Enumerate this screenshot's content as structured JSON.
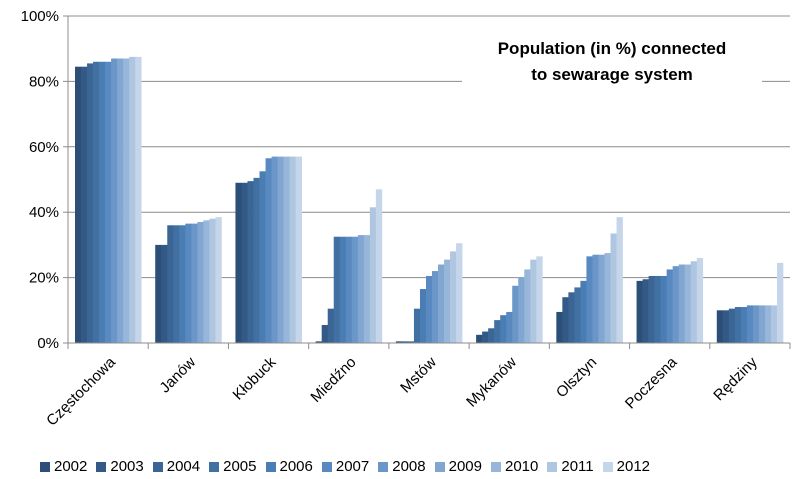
{
  "chart_data": {
    "type": "bar",
    "title_lines": [
      "Population (in %) connected",
      "to sewarage system"
    ],
    "y_ticks": [
      "0%",
      "20%",
      "40%",
      "60%",
      "80%",
      "100%"
    ],
    "ylim": [
      0,
      100
    ],
    "grid": true,
    "legend_position": "bottom",
    "categories": [
      "Częstochowa",
      "Janów",
      "Kłobuck",
      "Miedźno",
      "Mstów",
      "Mykanów",
      "Olsztyn",
      "Poczesna",
      "Rędziny"
    ],
    "series": [
      {
        "name": "2002",
        "color": "#2c4f78",
        "values": [
          84.5,
          30,
          49,
          0.5,
          0.5,
          2.5,
          9.5,
          19,
          10
        ]
      },
      {
        "name": "2003",
        "color": "#335a86",
        "values": [
          84.5,
          30,
          49,
          5.5,
          0.5,
          3.5,
          14,
          19.5,
          10
        ]
      },
      {
        "name": "2004",
        "color": "#3a6594",
        "values": [
          85.5,
          36,
          49.5,
          10.5,
          0.5,
          4.5,
          15.5,
          20.5,
          10.5
        ]
      },
      {
        "name": "2005",
        "color": "#4170a2",
        "values": [
          86,
          36,
          50.5,
          32.5,
          10.5,
          7,
          17,
          20.5,
          11
        ]
      },
      {
        "name": "2006",
        "color": "#4a7db3",
        "values": [
          86,
          36,
          52.5,
          32.5,
          16.5,
          8.5,
          19,
          20.5,
          11
        ]
      },
      {
        "name": "2007",
        "color": "#5889c0",
        "values": [
          86,
          36.5,
          56.5,
          32.5,
          20.5,
          9.5,
          26.5,
          22.5,
          11.5
        ]
      },
      {
        "name": "2008",
        "color": "#6b96c8",
        "values": [
          87,
          36.5,
          57,
          32.5,
          22,
          17.5,
          27,
          23.5,
          11.5
        ]
      },
      {
        "name": "2009",
        "color": "#80a6d1",
        "values": [
          87,
          37,
          57,
          33,
          24,
          20,
          27,
          24,
          11.5
        ]
      },
      {
        "name": "2010",
        "color": "#97b6d9",
        "values": [
          87,
          37.5,
          57,
          33,
          25.5,
          22.5,
          27.5,
          24,
          11.5
        ]
      },
      {
        "name": "2011",
        "color": "#afc6e1",
        "values": [
          87.5,
          38,
          57,
          41.5,
          28,
          25.5,
          33.5,
          25,
          11.5
        ]
      },
      {
        "name": "2012",
        "color": "#c5d5ea",
        "values": [
          87.5,
          38.5,
          57,
          47,
          30.5,
          26.5,
          38.5,
          26,
          24.5
        ]
      }
    ]
  }
}
